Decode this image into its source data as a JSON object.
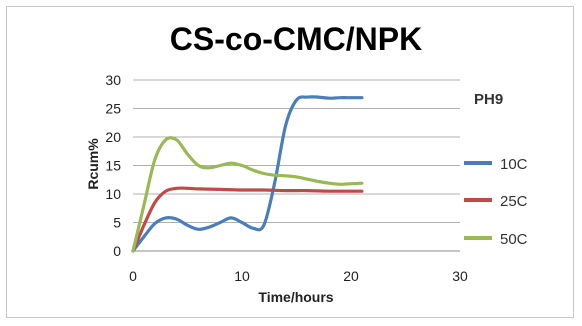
{
  "chart_data": {
    "type": "line",
    "title": "CS-co-CMC/NPK",
    "xlabel": "Time/hours",
    "ylabel": "Rcum%",
    "xlim": [
      0,
      30
    ],
    "ylim": [
      0,
      30
    ],
    "x_ticks": [
      "0",
      "10",
      "20",
      "30"
    ],
    "y_ticks": [
      "0",
      "5",
      "10",
      "15",
      "20",
      "25",
      "30"
    ],
    "grid": "horizontal",
    "legend_position": "right",
    "annotation": "PH9",
    "series": [
      {
        "name": "10C",
        "color": "#4a7ebb",
        "x": [
          0,
          1,
          2,
          3,
          4,
          5,
          6,
          7,
          8,
          9,
          10,
          11,
          12,
          13,
          14,
          15,
          16,
          17,
          18,
          19,
          20,
          21
        ],
        "y": [
          0,
          2.5,
          4.8,
          5.8,
          5.6,
          4.5,
          3.8,
          4.2,
          5.0,
          5.8,
          5.0,
          4.0,
          4.5,
          12.0,
          22.0,
          26.5,
          27.0,
          27.0,
          26.8,
          26.9,
          26.9,
          26.9
        ]
      },
      {
        "name": "25C",
        "color": "#be4b48",
        "x": [
          0,
          1,
          2,
          3,
          4,
          5,
          6,
          8,
          10,
          12,
          14,
          16,
          18,
          20,
          21
        ],
        "y": [
          0,
          4.5,
          8.5,
          10.5,
          11.0,
          11.0,
          10.9,
          10.8,
          10.7,
          10.7,
          10.6,
          10.6,
          10.5,
          10.5,
          10.5
        ]
      },
      {
        "name": "50C",
        "color": "#98b954",
        "x": [
          0,
          1,
          2,
          3,
          4,
          5,
          6,
          7,
          8,
          9,
          10,
          11,
          12,
          13,
          14,
          15,
          16,
          17,
          18,
          19,
          20,
          21
        ],
        "y": [
          0,
          8.0,
          16.0,
          19.5,
          19.5,
          17.0,
          15.0,
          14.6,
          15.0,
          15.4,
          15.0,
          14.2,
          13.6,
          13.3,
          13.2,
          13.0,
          12.6,
          12.2,
          11.9,
          11.7,
          11.8,
          11.9
        ]
      }
    ]
  }
}
